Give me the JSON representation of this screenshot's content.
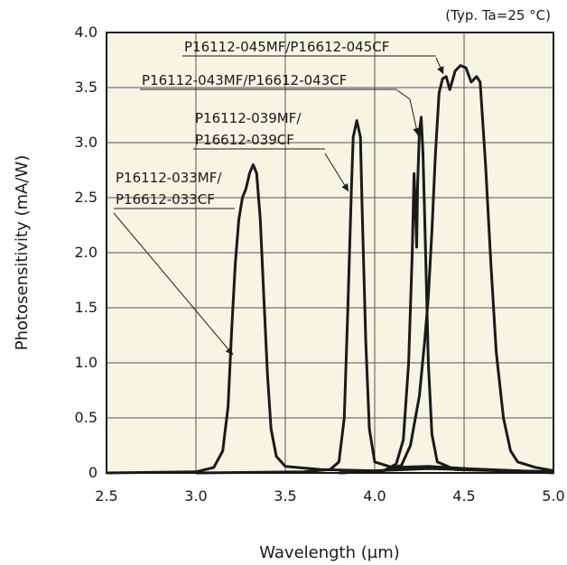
{
  "chart_data": {
    "type": "line",
    "title": "",
    "note": "(Typ. Ta=25 °C)",
    "xlabel": "Wavelength (µm)",
    "ylabel": "Photosensitivity (mA/W)",
    "xlim": [
      2.5,
      5.0
    ],
    "ylim": [
      0,
      4.0
    ],
    "xticks": [
      "2.5",
      "3.0",
      "3.5",
      "4.0",
      "4.5",
      "5.0"
    ],
    "yticks": [
      "0",
      "0.5",
      "1.0",
      "1.5",
      "2.0",
      "2.5",
      "3.0",
      "3.5",
      "4.0"
    ],
    "grid": true,
    "background_color": "#f6f4e3",
    "line_color": "#1a1a1a",
    "series": [
      {
        "label_lines": [
          "P16112-033MF/",
          "P16612-033CF"
        ],
        "points": [
          [
            2.5,
            0.0
          ],
          [
            3.0,
            0.01
          ],
          [
            3.1,
            0.05
          ],
          [
            3.15,
            0.2
          ],
          [
            3.18,
            0.6
          ],
          [
            3.2,
            1.3
          ],
          [
            3.22,
            1.9
          ],
          [
            3.24,
            2.3
          ],
          [
            3.26,
            2.5
          ],
          [
            3.28,
            2.58
          ],
          [
            3.3,
            2.72
          ],
          [
            3.32,
            2.8
          ],
          [
            3.34,
            2.72
          ],
          [
            3.36,
            2.3
          ],
          [
            3.38,
            1.6
          ],
          [
            3.4,
            0.9
          ],
          [
            3.42,
            0.4
          ],
          [
            3.45,
            0.15
          ],
          [
            3.5,
            0.06
          ],
          [
            3.7,
            0.03
          ],
          [
            4.0,
            0.02
          ],
          [
            4.3,
            0.04
          ],
          [
            4.5,
            0.03
          ],
          [
            4.8,
            0.02
          ],
          [
            5.0,
            0.01
          ]
        ]
      },
      {
        "label_lines": [
          "P16112-039MF/",
          "P16612-039CF"
        ],
        "points": [
          [
            3.0,
            0.0
          ],
          [
            3.6,
            0.01
          ],
          [
            3.75,
            0.03
          ],
          [
            3.8,
            0.1
          ],
          [
            3.83,
            0.5
          ],
          [
            3.85,
            1.5
          ],
          [
            3.87,
            2.6
          ],
          [
            3.88,
            3.05
          ],
          [
            3.9,
            3.2
          ],
          [
            3.92,
            3.05
          ],
          [
            3.93,
            2.4
          ],
          [
            3.95,
            1.2
          ],
          [
            3.97,
            0.4
          ],
          [
            4.0,
            0.1
          ],
          [
            4.1,
            0.05
          ],
          [
            4.3,
            0.06
          ],
          [
            4.5,
            0.04
          ],
          [
            4.8,
            0.02
          ],
          [
            5.0,
            0.0
          ]
        ]
      },
      {
        "label_lines": [
          "P16112-043MF/P16612-043CF"
        ],
        "points": [
          [
            3.8,
            0.0
          ],
          [
            4.05,
            0.02
          ],
          [
            4.12,
            0.08
          ],
          [
            4.16,
            0.3
          ],
          [
            4.19,
            1.0
          ],
          [
            4.21,
            2.0
          ],
          [
            4.22,
            2.72
          ],
          [
            4.23,
            2.3
          ],
          [
            4.235,
            2.05
          ],
          [
            4.24,
            2.6
          ],
          [
            4.25,
            3.1
          ],
          [
            4.26,
            3.23
          ],
          [
            4.27,
            2.9
          ],
          [
            4.285,
            2.0
          ],
          [
            4.3,
            1.0
          ],
          [
            4.32,
            0.35
          ],
          [
            4.35,
            0.1
          ],
          [
            4.45,
            0.03
          ],
          [
            4.7,
            0.02
          ],
          [
            5.0,
            0.01
          ]
        ]
      },
      {
        "label_lines": [
          "P16112-045MF/P16612-045CF"
        ],
        "points": [
          [
            3.8,
            0.0
          ],
          [
            4.05,
            0.02
          ],
          [
            4.15,
            0.07
          ],
          [
            4.2,
            0.25
          ],
          [
            4.25,
            0.7
          ],
          [
            4.28,
            1.2
          ],
          [
            4.3,
            1.6
          ],
          [
            4.32,
            2.2
          ],
          [
            4.34,
            2.9
          ],
          [
            4.36,
            3.45
          ],
          [
            4.38,
            3.58
          ],
          [
            4.4,
            3.6
          ],
          [
            4.42,
            3.48
          ],
          [
            4.45,
            3.65
          ],
          [
            4.48,
            3.7
          ],
          [
            4.51,
            3.68
          ],
          [
            4.54,
            3.55
          ],
          [
            4.57,
            3.6
          ],
          [
            4.59,
            3.55
          ],
          [
            4.62,
            2.8
          ],
          [
            4.65,
            1.9
          ],
          [
            4.68,
            1.1
          ],
          [
            4.72,
            0.5
          ],
          [
            4.76,
            0.2
          ],
          [
            4.8,
            0.1
          ],
          [
            4.9,
            0.05
          ],
          [
            5.0,
            0.02
          ]
        ]
      }
    ]
  }
}
